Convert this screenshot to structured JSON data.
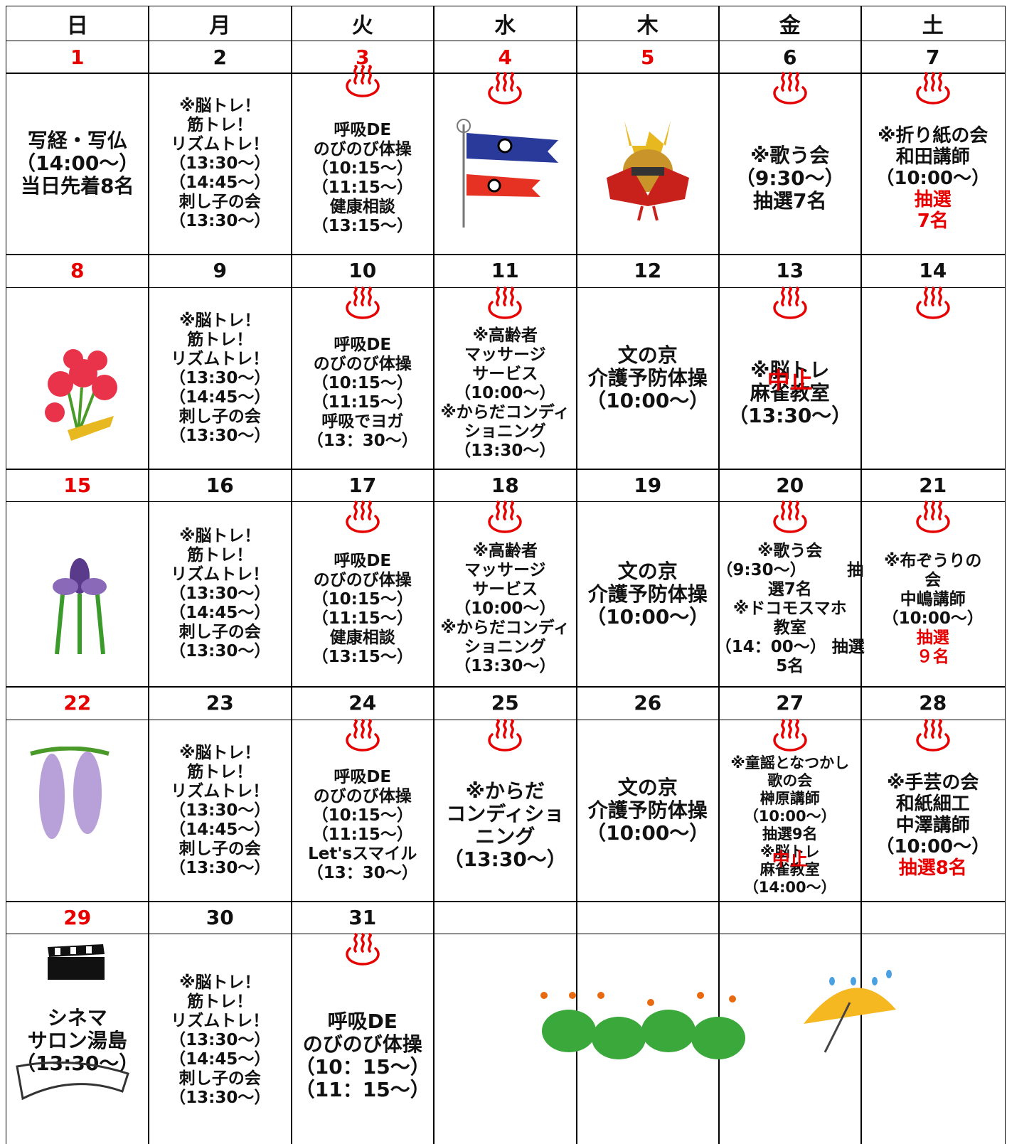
{
  "header": {
    "days": [
      "日",
      "月",
      "火",
      "水",
      "木",
      "金",
      "土"
    ]
  },
  "weeks": [
    {
      "dates": [
        {
          "text": "1",
          "color": "#e60000"
        },
        "2",
        {
          "text": "3",
          "color": "#e60000"
        },
        {
          "text": "4",
          "color": "#e60000"
        },
        {
          "text": "5",
          "color": "#e60000"
        },
        "6",
        "7"
      ],
      "cells": [
        [
          "写経・写仏",
          "（14:00～）",
          "当日先着8名"
        ],
        [
          "※脳トレ！",
          "筋トレ！",
          "リズムトレ！",
          "（13:30～）",
          "（14:45～）",
          "刺し子の会",
          "（13:30～）"
        ],
        [
          "呼吸DE",
          "のびのび体操",
          "（10:15～）",
          "（11:15～）",
          "健康相談",
          "（13:15～）"
        ],
        [],
        [],
        [
          "※歌う会",
          "（9:30～）",
          "抽選7名"
        ],
        [
          "※折り紙の会",
          "和田講師",
          "（10:00～）",
          {
            "text": "抽選",
            "color": "#e60000"
          },
          {
            "text": "7名",
            "color": "#e60000"
          }
        ]
      ]
    },
    {
      "dates": [
        {
          "text": "8",
          "color": "#e60000"
        },
        "9",
        "10",
        "11",
        "12",
        "13",
        "14"
      ],
      "cells": [
        [],
        [
          "※脳トレ！",
          "筋トレ！",
          "リズムトレ！",
          "（13:30～）",
          "（14:45～）",
          "刺し子の会",
          "（13:30～）"
        ],
        [
          "呼吸DE",
          "のびのび体操",
          "（10:15～）",
          "（11:15～）",
          "呼吸でヨガ",
          "（13：30～）"
        ],
        [
          "※高齢者",
          "マッサージ",
          "サービス",
          "（10:00～）",
          "※からだコンディ",
          "ショニング",
          "（13:30～）"
        ],
        [
          "文の京",
          "介護予防体操",
          "（10:00～）"
        ],
        [
          "※脳トレ",
          {
            "text": "中止",
            "color": "#e60000",
            "overlay": true
          },
          "麻雀教室",
          "（13:30～）"
        ],
        []
      ]
    },
    {
      "dates": [
        {
          "text": "15",
          "color": "#e60000"
        },
        "16",
        "17",
        "18",
        "19",
        "20",
        "21"
      ],
      "cells": [
        [],
        [
          "※脳トレ！",
          "筋トレ！",
          "リズムトレ！",
          "（13:30～）",
          "（14:45～）",
          "刺し子の会",
          "（13:30～）"
        ],
        [
          "呼吸DE",
          "のびのび体操",
          "（10:15～）",
          "（11:15～）",
          "健康相談",
          "（13:15～）"
        ],
        [
          "※高齢者",
          "マッサージ",
          "サービス",
          "（10:00～）",
          "※からだコンディ",
          "ショニング",
          "（13:30～）"
        ],
        [
          "文の京",
          "介護予防体操",
          "（10:00～）"
        ],
        [
          "※歌う会",
          "（9:30～）　　　抽",
          "選7名",
          "※ドコモスマホ",
          "教室",
          "（14：00～） 抽選",
          "5名"
        ],
        [
          "※布ぞうりの",
          "会",
          "中嶋講師",
          "（10:00～）",
          {
            "text": "抽選",
            "color": "#e60000"
          },
          {
            "text": "９名",
            "color": "#e60000"
          }
        ]
      ]
    },
    {
      "dates": [
        {
          "text": "22",
          "color": "#e60000"
        },
        "23",
        "24",
        "25",
        "26",
        "27",
        "28"
      ],
      "cells": [
        [],
        [
          "※脳トレ！",
          "筋トレ！",
          "リズムトレ！",
          "（13:30～）",
          "（14:45～）",
          "刺し子の会",
          "（13:30～）"
        ],
        [
          "呼吸DE",
          "のびのび体操",
          "（10:15～）",
          "（11:15～）",
          "Let'sスマイル",
          "（13：30～）"
        ],
        [
          "※からだ",
          "コンディショ",
          "ニング",
          "（13:30～）"
        ],
        [
          "文の京",
          "介護予防体操",
          "（10:00～）"
        ],
        [
          "※童謡となつかし",
          "歌の会",
          "榊原講師",
          "（10:00～）",
          "抽選9名",
          "※脳トレ",
          {
            "text": "中止",
            "color": "#e60000",
            "overlay": true
          },
          "麻雀教室",
          "（14:00～）"
        ],
        [
          "※手芸の会",
          "和紙細工",
          "中澤講師",
          "（10:00～）",
          {
            "text": "抽選8名",
            "color": "#e60000"
          }
        ]
      ]
    },
    {
      "dates": [
        {
          "text": "29",
          "color": "#e60000"
        },
        "30",
        "31",
        null,
        null,
        null,
        null
      ],
      "cells": [
        [
          "シネマ",
          "サロン湯島",
          "（13:30～）"
        ],
        [
          "※脳トレ！",
          "筋トレ！",
          "リズムトレ！",
          "（13:30～）",
          "（14:45～）",
          "刺し子の会",
          "（13:30～）"
        ],
        [
          "呼吸DE",
          "のびのび体操",
          "（10：15～）",
          "（11：15～）"
        ],
        [],
        [],
        [],
        []
      ]
    }
  ]
}
